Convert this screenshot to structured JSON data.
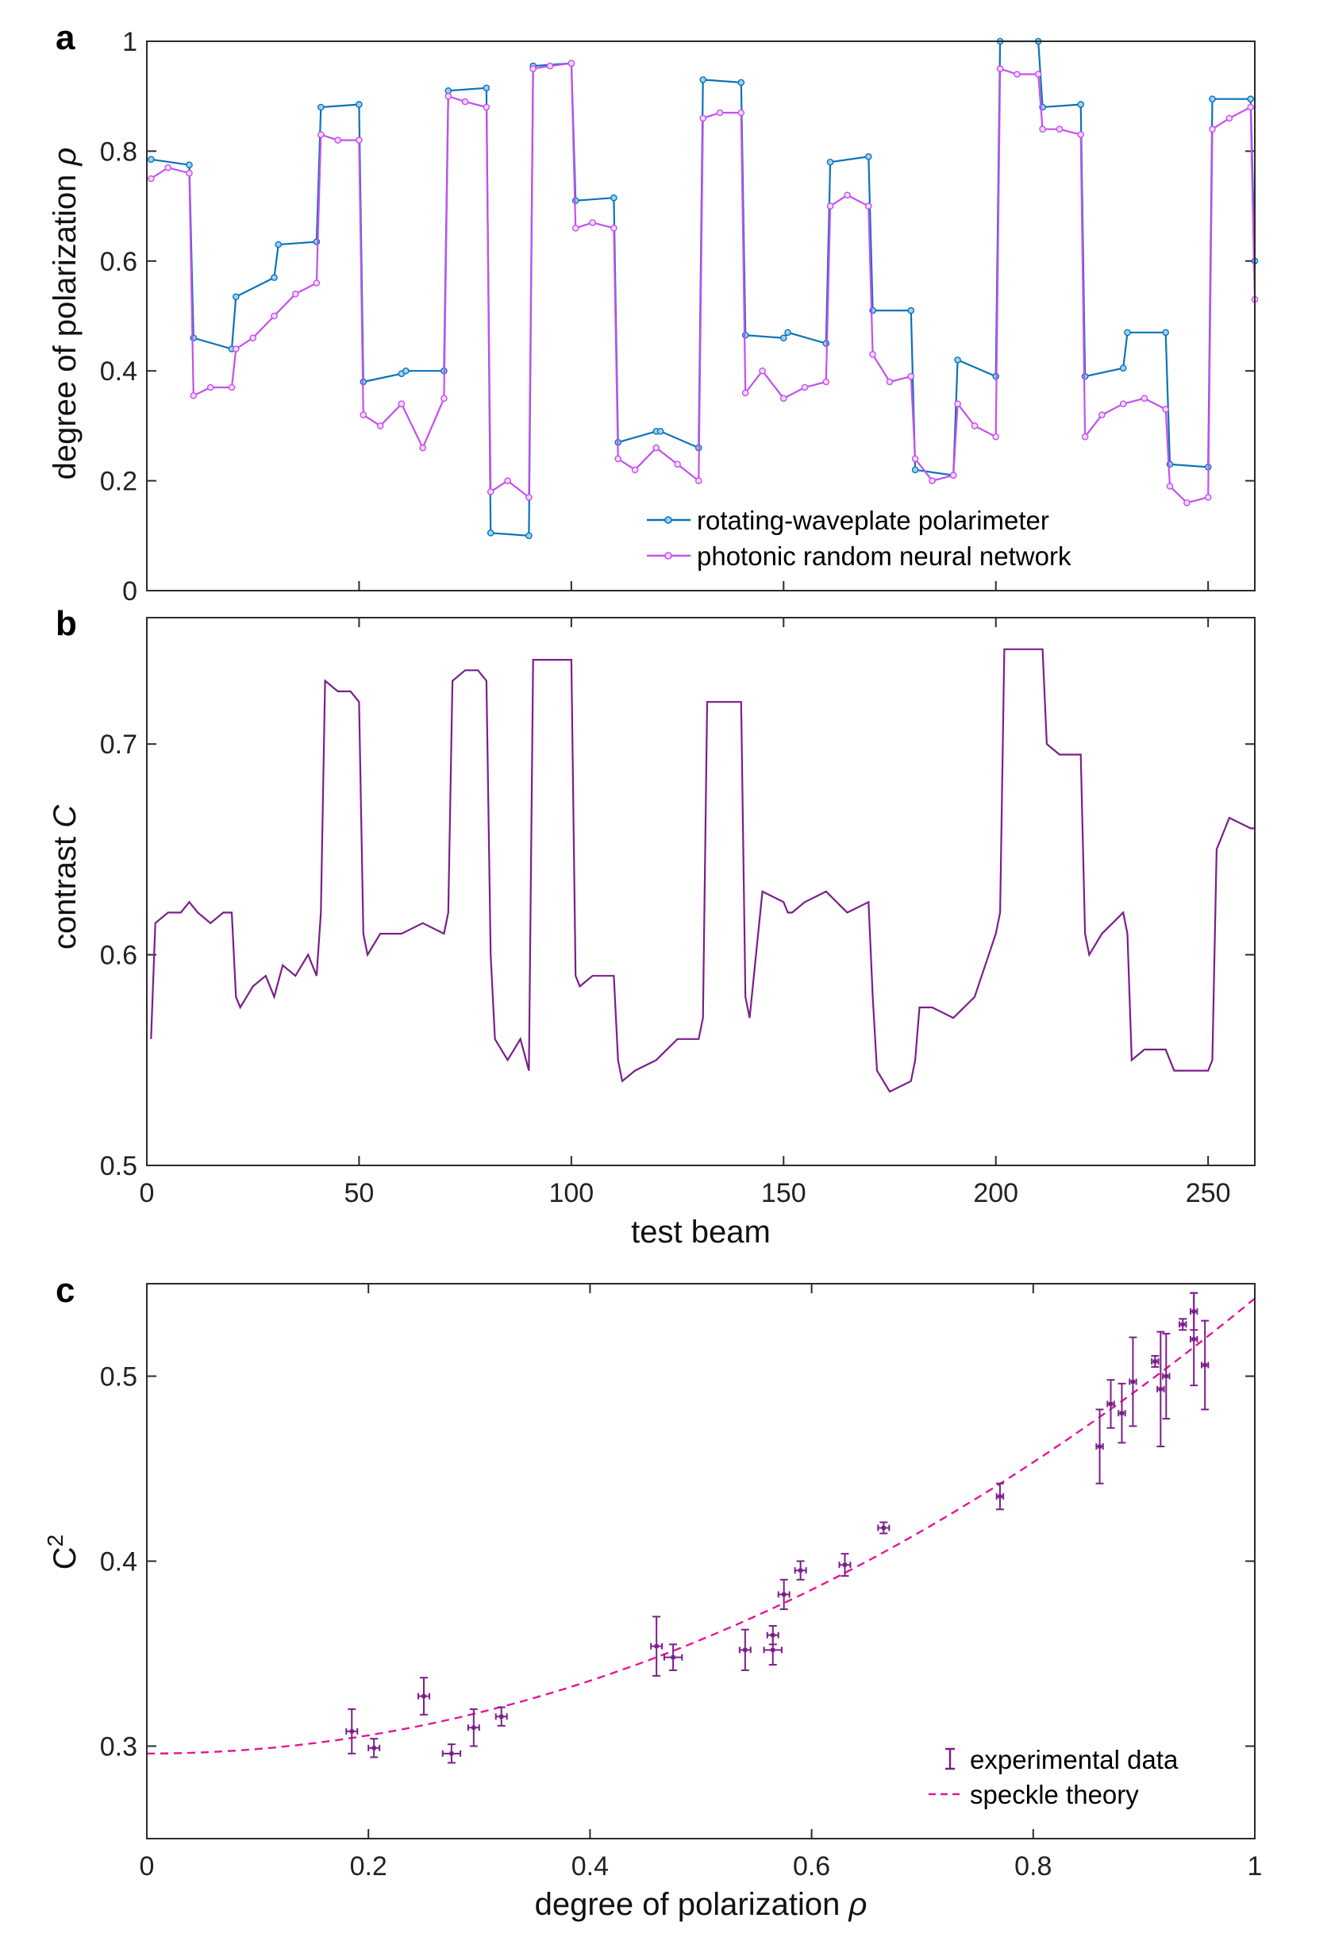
{
  "colors": {
    "blue": "#0c72b8",
    "violet": "#c450f0",
    "purple": "#7a1f8a",
    "pink": "#e3159a"
  },
  "chart_data": [
    {
      "panel": "a",
      "type": "line",
      "xlabel": "",
      "ylabel_text": "degree of polarization",
      "ylabel_symbol": "ρ",
      "xlim": [
        0,
        261
      ],
      "ylim": [
        0,
        1
      ],
      "yticks": [
        "0",
        "0.2",
        "0.4",
        "0.6",
        "0.8",
        "1"
      ],
      "markers": "circle",
      "legend_position": "bottom-right",
      "series": [
        {
          "name": "rotating-waveplate polarimeter",
          "color_key": "blue",
          "x": [
            1,
            10,
            11,
            20,
            21,
            30,
            31,
            40,
            41,
            50,
            51,
            60,
            61,
            70,
            71,
            80,
            81,
            90,
            91,
            100,
            101,
            110,
            111,
            120,
            121,
            130,
            131,
            140,
            141,
            150,
            151,
            160,
            161,
            170,
            171,
            180,
            181,
            190,
            191,
            200,
            201,
            210,
            211,
            220,
            221,
            230,
            231,
            240,
            241,
            250,
            251,
            260,
            261
          ],
          "values": [
            0.785,
            0.775,
            0.46,
            0.44,
            0.535,
            0.57,
            0.63,
            0.635,
            0.88,
            0.885,
            0.38,
            0.395,
            0.4,
            0.4,
            0.91,
            0.915,
            0.105,
            0.1,
            0.955,
            0.96,
            0.71,
            0.715,
            0.27,
            0.29,
            0.29,
            0.26,
            0.93,
            0.925,
            0.465,
            0.46,
            0.47,
            0.45,
            0.78,
            0.79,
            0.51,
            0.51,
            0.22,
            0.21,
            0.42,
            0.39,
            1.0,
            1.0,
            0.88,
            0.885,
            0.39,
            0.405,
            0.47,
            0.47,
            0.23,
            0.225,
            0.895,
            0.895,
            0.6
          ]
        },
        {
          "name": "photonic random neural network",
          "color_key": "violet",
          "x": [
            1,
            5,
            10,
            11,
            15,
            20,
            21,
            25,
            30,
            35,
            40,
            41,
            45,
            50,
            51,
            55,
            60,
            65,
            70,
            71,
            75,
            80,
            81,
            85,
            90,
            91,
            95,
            100,
            101,
            105,
            110,
            111,
            115,
            120,
            125,
            130,
            131,
            135,
            140,
            141,
            145,
            150,
            155,
            160,
            161,
            165,
            170,
            171,
            175,
            180,
            181,
            185,
            190,
            191,
            195,
            200,
            201,
            205,
            210,
            211,
            215,
            220,
            221,
            225,
            230,
            235,
            240,
            241,
            245,
            250,
            251,
            255,
            260,
            261
          ],
          "values": [
            0.75,
            0.77,
            0.76,
            0.355,
            0.37,
            0.37,
            0.44,
            0.46,
            0.5,
            0.54,
            0.56,
            0.83,
            0.82,
            0.82,
            0.32,
            0.3,
            0.34,
            0.26,
            0.35,
            0.9,
            0.89,
            0.88,
            0.18,
            0.2,
            0.17,
            0.95,
            0.955,
            0.96,
            0.66,
            0.67,
            0.66,
            0.24,
            0.22,
            0.26,
            0.23,
            0.2,
            0.86,
            0.87,
            0.87,
            0.36,
            0.4,
            0.35,
            0.37,
            0.38,
            0.7,
            0.72,
            0.7,
            0.43,
            0.38,
            0.39,
            0.24,
            0.2,
            0.21,
            0.34,
            0.3,
            0.28,
            0.95,
            0.94,
            0.94,
            0.84,
            0.84,
            0.83,
            0.28,
            0.32,
            0.34,
            0.35,
            0.33,
            0.19,
            0.16,
            0.17,
            0.84,
            0.86,
            0.88,
            0.53
          ]
        }
      ]
    },
    {
      "panel": "b",
      "type": "line",
      "xlabel": "test beam",
      "ylabel_text": "contrast",
      "ylabel_symbol": "C",
      "xlim": [
        0,
        261
      ],
      "ylim": [
        0.5,
        0.76
      ],
      "xticks": [
        "0",
        "50",
        "100",
        "150",
        "200",
        "250"
      ],
      "yticks": [
        "0.5",
        "0.6",
        "0.7"
      ],
      "series": [
        {
          "name": "contrast",
          "color_key": "purple",
          "x": [
            1,
            2,
            5,
            8,
            10,
            12,
            15,
            18,
            20,
            21,
            22,
            25,
            28,
            30,
            32,
            35,
            38,
            40,
            41,
            42,
            45,
            48,
            50,
            51,
            52,
            55,
            60,
            65,
            70,
            71,
            72,
            75,
            78,
            80,
            81,
            82,
            85,
            88,
            90,
            91,
            92,
            95,
            100,
            101,
            102,
            105,
            110,
            111,
            112,
            115,
            120,
            125,
            130,
            131,
            132,
            135,
            140,
            141,
            142,
            145,
            150,
            151,
            152,
            155,
            160,
            165,
            170,
            171,
            172,
            175,
            180,
            181,
            182,
            185,
            190,
            195,
            200,
            201,
            202,
            205,
            210,
            211,
            212,
            215,
            220,
            221,
            222,
            225,
            230,
            231,
            232,
            235,
            240,
            241,
            242,
            245,
            250,
            251,
            252,
            255,
            260,
            261
          ],
          "values": [
            0.56,
            0.615,
            0.62,
            0.62,
            0.625,
            0.62,
            0.615,
            0.62,
            0.62,
            0.58,
            0.575,
            0.585,
            0.59,
            0.58,
            0.595,
            0.59,
            0.6,
            0.59,
            0.62,
            0.73,
            0.725,
            0.725,
            0.72,
            0.61,
            0.6,
            0.61,
            0.61,
            0.615,
            0.61,
            0.62,
            0.73,
            0.735,
            0.735,
            0.73,
            0.6,
            0.56,
            0.55,
            0.56,
            0.545,
            0.74,
            0.74,
            0.74,
            0.74,
            0.59,
            0.585,
            0.59,
            0.59,
            0.55,
            0.54,
            0.545,
            0.55,
            0.56,
            0.56,
            0.57,
            0.72,
            0.72,
            0.72,
            0.58,
            0.57,
            0.63,
            0.625,
            0.62,
            0.62,
            0.625,
            0.63,
            0.62,
            0.625,
            0.58,
            0.545,
            0.535,
            0.54,
            0.55,
            0.575,
            0.575,
            0.57,
            0.58,
            0.61,
            0.62,
            0.745,
            0.745,
            0.745,
            0.745,
            0.7,
            0.695,
            0.695,
            0.61,
            0.6,
            0.61,
            0.62,
            0.61,
            0.55,
            0.555,
            0.555,
            0.55,
            0.545,
            0.545,
            0.545,
            0.55,
            0.65,
            0.665,
            0.66,
            0.66
          ]
        }
      ]
    },
    {
      "panel": "c",
      "type": "scatter",
      "xlabel_text": "degree of polarization",
      "xlabel_symbol": "ρ",
      "ylabel_base": "C",
      "ylabel_sup": "2",
      "xlim": [
        0,
        1
      ],
      "ylim": [
        0.25,
        0.55
      ],
      "xticks": [
        "0",
        "0.2",
        "0.4",
        "0.6",
        "0.8",
        "1"
      ],
      "yticks": [
        "0.3",
        "0.4",
        "0.5"
      ],
      "legend_position": "bottom-right",
      "series": [
        {
          "name": "experimental data",
          "color_key": "purple",
          "points": [
            {
              "x": 0.185,
              "y": 0.308,
              "yerr": 0.012,
              "xerr": 0.005
            },
            {
              "x": 0.205,
              "y": 0.299,
              "yerr": 0.005,
              "xerr": 0.005
            },
            {
              "x": 0.25,
              "y": 0.327,
              "yerr": 0.01,
              "xerr": 0.005
            },
            {
              "x": 0.275,
              "y": 0.296,
              "yerr": 0.005,
              "xerr": 0.008
            },
            {
              "x": 0.295,
              "y": 0.31,
              "yerr": 0.01,
              "xerr": 0.005
            },
            {
              "x": 0.32,
              "y": 0.316,
              "yerr": 0.005,
              "xerr": 0.005
            },
            {
              "x": 0.46,
              "y": 0.354,
              "yerr": 0.016,
              "xerr": 0.005
            },
            {
              "x": 0.475,
              "y": 0.348,
              "yerr": 0.007,
              "xerr": 0.008
            },
            {
              "x": 0.54,
              "y": 0.352,
              "yerr": 0.011,
              "xerr": 0.005
            },
            {
              "x": 0.565,
              "y": 0.36,
              "yerr": 0.005,
              "xerr": 0.005
            },
            {
              "x": 0.565,
              "y": 0.352,
              "yerr": 0.008,
              "xerr": 0.008
            },
            {
              "x": 0.575,
              "y": 0.382,
              "yerr": 0.008,
              "xerr": 0.005
            },
            {
              "x": 0.59,
              "y": 0.395,
              "yerr": 0.005,
              "xerr": 0.005
            },
            {
              "x": 0.63,
              "y": 0.398,
              "yerr": 0.006,
              "xerr": 0.005
            },
            {
              "x": 0.665,
              "y": 0.418,
              "yerr": 0.003,
              "xerr": 0.005
            },
            {
              "x": 0.77,
              "y": 0.435,
              "yerr": 0.007,
              "xerr": 0.003
            },
            {
              "x": 0.86,
              "y": 0.462,
              "yerr": 0.02,
              "xerr": 0.003
            },
            {
              "x": 0.87,
              "y": 0.485,
              "yerr": 0.013,
              "xerr": 0.003
            },
            {
              "x": 0.88,
              "y": 0.48,
              "yerr": 0.016,
              "xerr": 0.003
            },
            {
              "x": 0.89,
              "y": 0.497,
              "yerr": 0.024,
              "xerr": 0.003
            },
            {
              "x": 0.91,
              "y": 0.508,
              "yerr": 0.003,
              "xerr": 0.003
            },
            {
              "x": 0.915,
              "y": 0.493,
              "yerr": 0.031,
              "xerr": 0.003
            },
            {
              "x": 0.92,
              "y": 0.5,
              "yerr": 0.023,
              "xerr": 0.003
            },
            {
              "x": 0.935,
              "y": 0.528,
              "yerr": 0.003,
              "xerr": 0.003
            },
            {
              "x": 0.945,
              "y": 0.535,
              "yerr": 0.01,
              "xerr": 0.003
            },
            {
              "x": 0.945,
              "y": 0.52,
              "yerr": 0.025,
              "xerr": 0.003
            },
            {
              "x": 0.955,
              "y": 0.506,
              "yerr": 0.024,
              "xerr": 0.003
            }
          ]
        },
        {
          "name": "speckle theory",
          "color_key": "pink",
          "style": "dashed",
          "model": "C2 = 0.296 + 0.246 * rho^2"
        }
      ]
    }
  ]
}
